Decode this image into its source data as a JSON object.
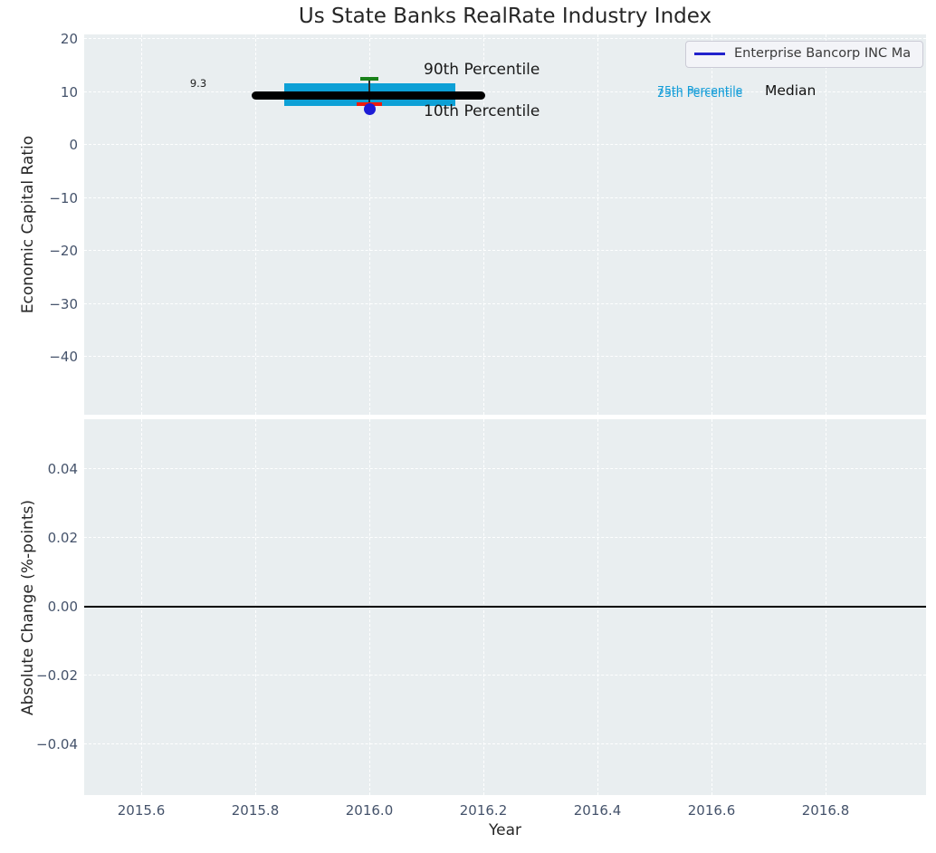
{
  "figure_title": "Us State Banks RealRate Industry Index",
  "colors": {
    "plot_bg": "#e9eef0",
    "grid": "#ffffff",
    "box_fill": "#0da0d6",
    "median_line": "#000000",
    "p90_cap": "#1a821a",
    "p10_cap": "#ee1b0c",
    "company_dot": "#1c1cd6",
    "legend_line": "#2222cc",
    "zero_line": "#000000",
    "tick_text": "#45536b",
    "label_text": "#262626",
    "annotation_cyan": "#149dd8"
  },
  "chart_data": [
    {
      "type": "boxplot",
      "subplot": "top",
      "title": "Us State Banks RealRate Industry Index",
      "xlabel": "Year",
      "ylabel": "Economic Capital Ratio",
      "xlim": [
        2015.5,
        2016.98
      ],
      "ylim": [
        -51,
        21
      ],
      "grid": true,
      "legend_position": "upper right",
      "xticks": [
        {
          "value": 2015.6,
          "label": "2015.6"
        },
        {
          "value": 2015.8,
          "label": "2015.8"
        },
        {
          "value": 2016.0,
          "label": "2016.0"
        },
        {
          "value": 2016.2,
          "label": "2016.2"
        },
        {
          "value": 2016.4,
          "label": "2016.4"
        },
        {
          "value": 2016.6,
          "label": "2016.6"
        },
        {
          "value": 2016.8,
          "label": "2016.8"
        }
      ],
      "yticks": [
        {
          "value": 20,
          "label": "20"
        },
        {
          "value": 10,
          "label": "10"
        },
        {
          "value": 0,
          "label": "0"
        },
        {
          "value": -10,
          "label": "−10"
        },
        {
          "value": -20,
          "label": "−20"
        },
        {
          "value": -30,
          "label": "−30"
        },
        {
          "value": -40,
          "label": "−40"
        }
      ],
      "box": {
        "year_center": 2016.0,
        "median": 9.3,
        "median_line_years": [
          2015.793,
          2016.203
        ],
        "box_years": [
          2015.85,
          2016.15
        ],
        "p75_est": 11.6,
        "p25_est": 7.4,
        "p90_est": 12.5,
        "p10_est": 7.7,
        "p90_cap_half_width_years": 0.0165,
        "p10_cap_half_width_years": 0.0215
      },
      "company_point": {
        "year": 2016.0,
        "value": 6.8
      },
      "annotations": {
        "median_value_label": "9.3",
        "p90_label": "90th Percentile",
        "p10_label": "10th Percentile",
        "p75_label": "75th Percentile",
        "p25_label": "25th Percentile",
        "median_label": "Median"
      },
      "legend": {
        "label": "Enterprise Bancorp INC Ma"
      }
    },
    {
      "type": "line",
      "subplot": "bottom",
      "ylabel": "Absolute Change (%-points)",
      "ylim": [
        -0.055,
        0.055
      ],
      "grid": true,
      "yticks": [
        {
          "value": 0.04,
          "label": "0.04"
        },
        {
          "value": 0.02,
          "label": "0.02"
        },
        {
          "value": 0,
          "label": "0.00"
        },
        {
          "value": -0.02,
          "label": "−0.02"
        },
        {
          "value": -0.04,
          "label": "−0.04"
        }
      ],
      "zero_line_value": 0.0,
      "series": []
    }
  ]
}
